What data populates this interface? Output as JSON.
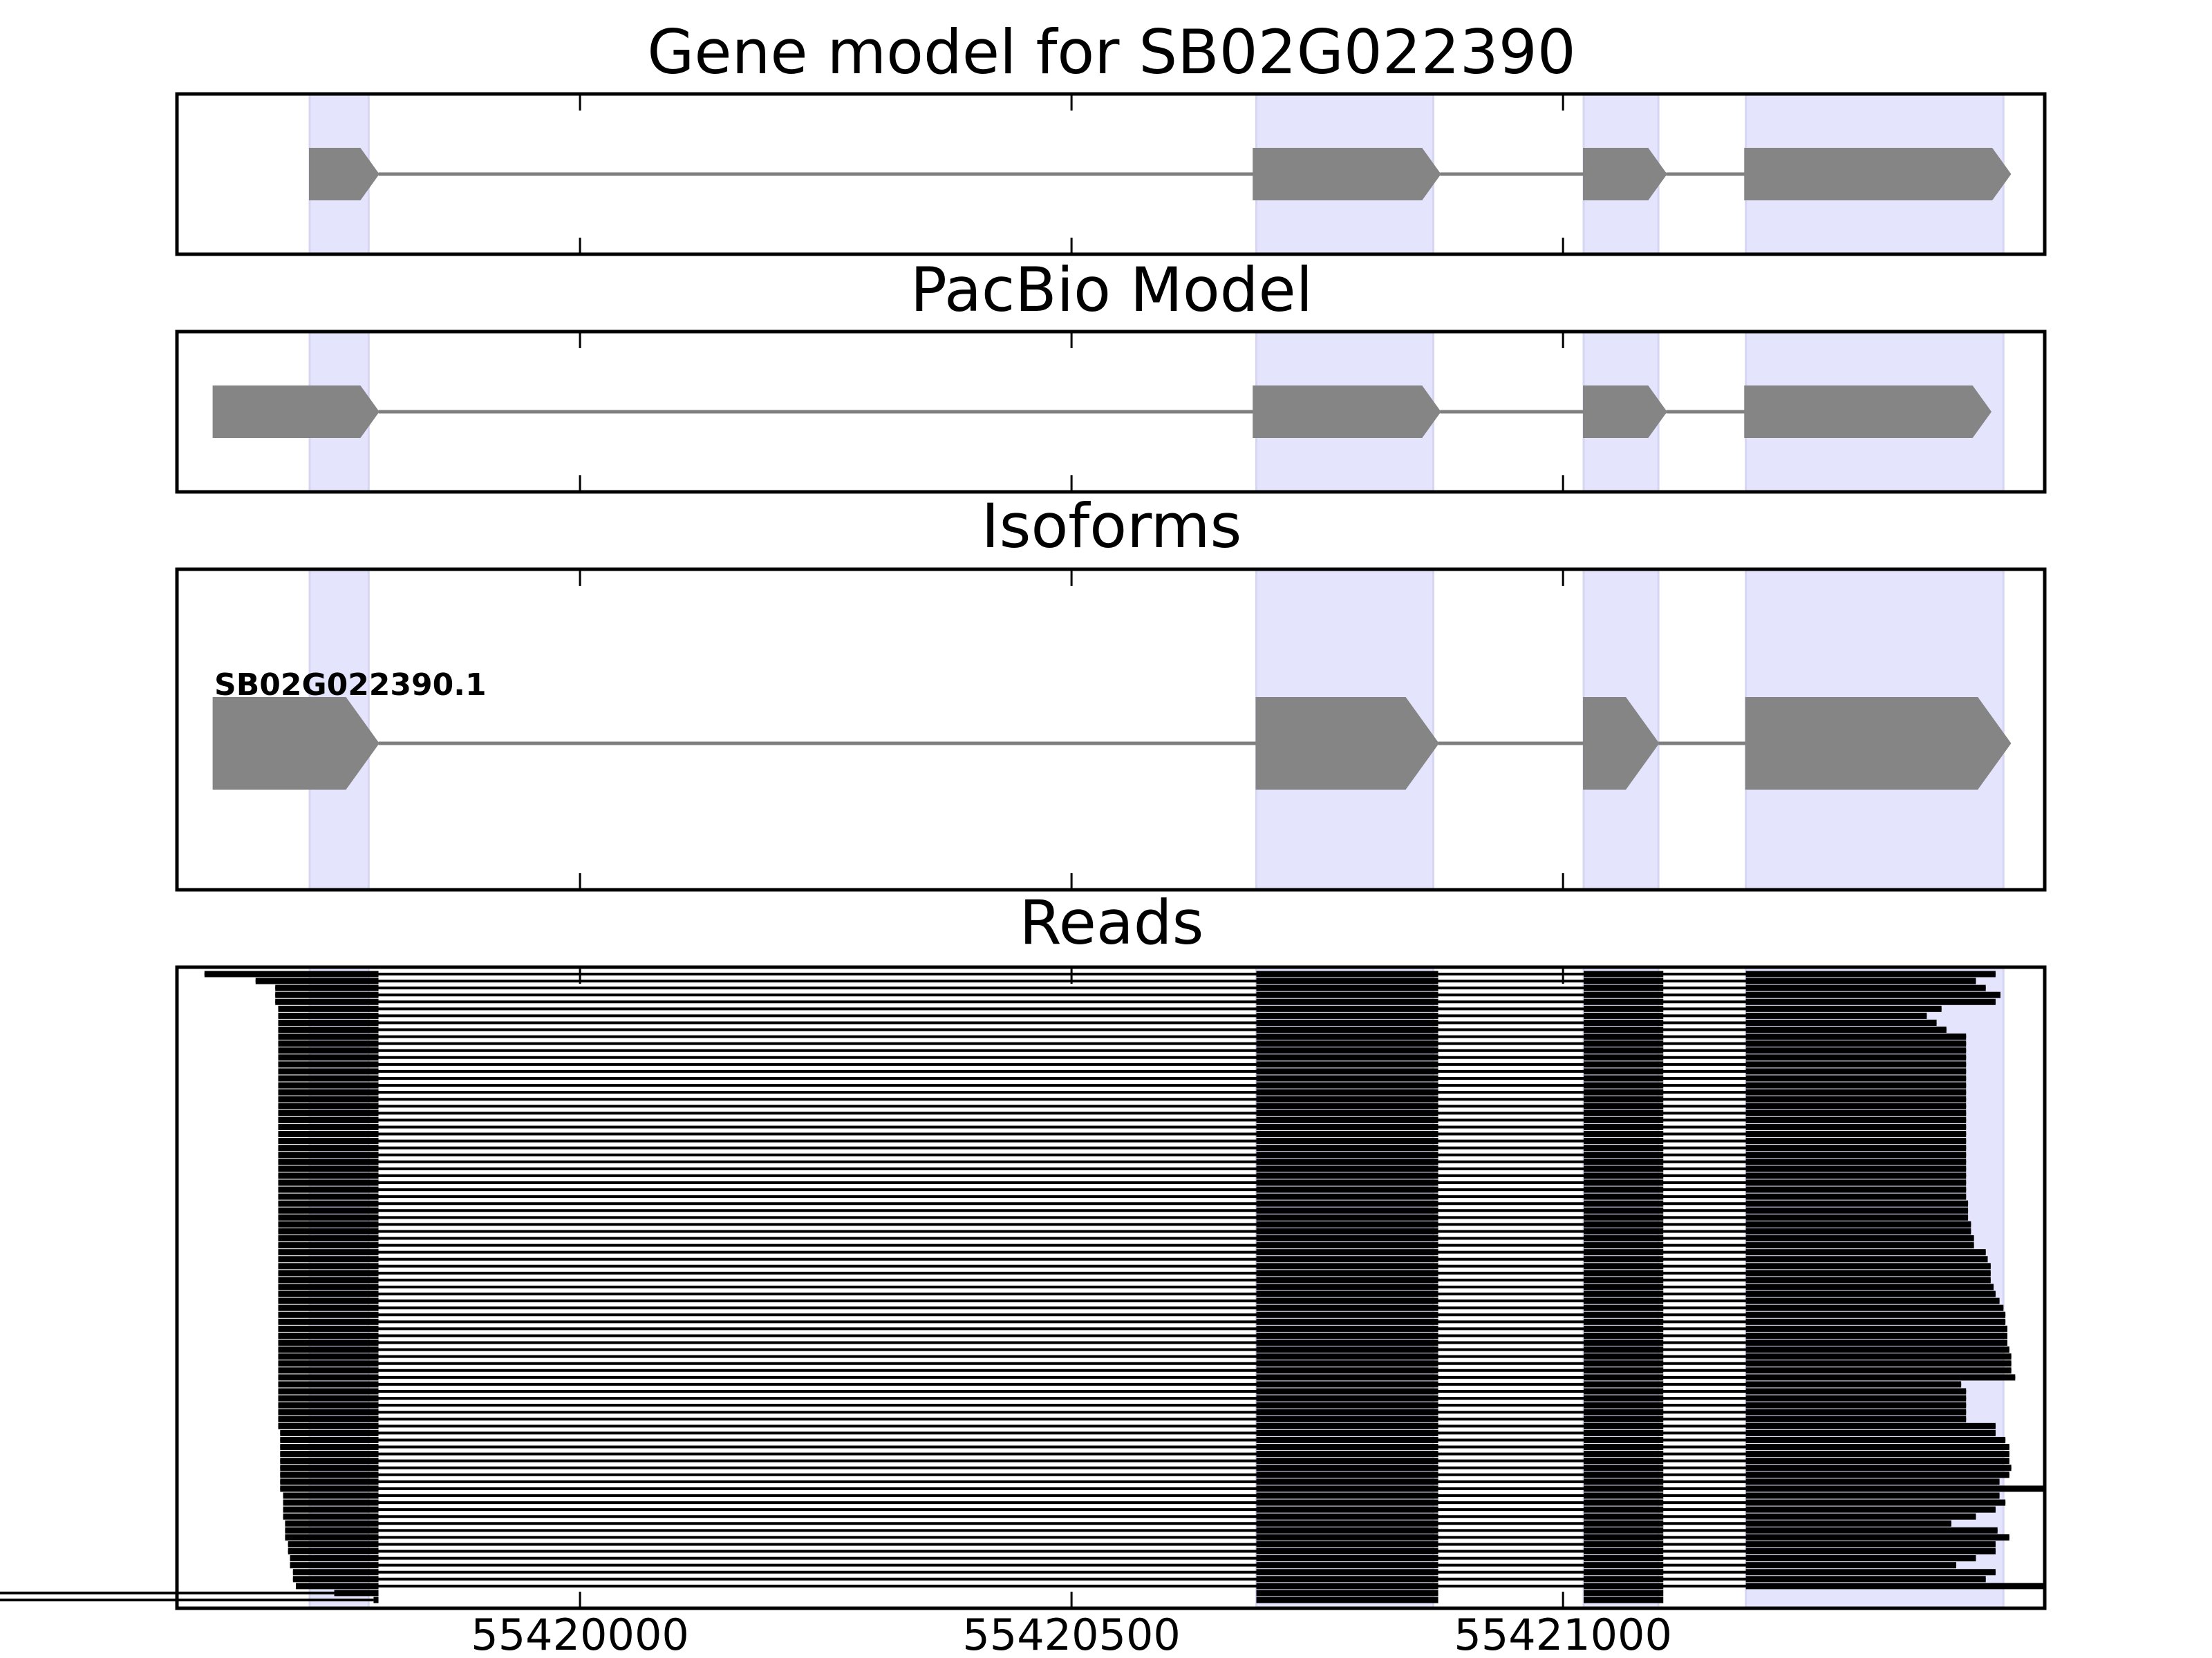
{
  "chart_data": {
    "type": "gene-model-tracks",
    "xlim": [
      55419590,
      55421490
    ],
    "x_ticks": [
      55420000,
      55420500,
      55421000
    ],
    "x_tick_labels": [
      "55420000",
      "55420500",
      "55421000"
    ],
    "exon_highlights": [
      [
        55419725,
        55419785
      ],
      [
        55420688,
        55420868
      ],
      [
        55421021,
        55421097
      ],
      [
        55421186,
        55421448
      ]
    ],
    "panels": [
      {
        "id": "gene-model",
        "title": "Gene model for SB02G022390",
        "blocks": [
          [
            55419725,
            55419795
          ],
          [
            55420685,
            55420875
          ],
          [
            55421021,
            55421105
          ],
          [
            55421185,
            55421455
          ]
        ],
        "introns": [
          [
            55419795,
            55420685
          ],
          [
            55420875,
            55421021
          ],
          [
            55421105,
            55421185
          ]
        ]
      },
      {
        "id": "pacbio-model",
        "title": "PacBio Model",
        "blocks": [
          [
            55419627,
            55419795
          ],
          [
            55420685,
            55420875
          ],
          [
            55421021,
            55421105
          ],
          [
            55421185,
            55421435
          ]
        ],
        "introns": [
          [
            55419795,
            55420685
          ],
          [
            55420875,
            55421021
          ],
          [
            55421105,
            55421185
          ]
        ]
      },
      {
        "id": "isoforms",
        "title": "Isoforms",
        "isoform_label": "SB02G022390.1",
        "blocks": [
          [
            55419627,
            55419795
          ],
          [
            55420688,
            55420873
          ],
          [
            55421021,
            55421097
          ],
          [
            55421186,
            55421455
          ]
        ],
        "introns": [
          [
            55419795,
            55420688
          ],
          [
            55420873,
            55421021
          ],
          [
            55421097,
            55421186
          ]
        ]
      },
      {
        "id": "reads",
        "title": "Reads",
        "read_exons": [
          [
            55420688,
            55420873
          ],
          [
            55421021,
            55421102
          ],
          [
            55421186,
            null
          ]
        ],
        "read_first_exon_end": 55419795,
        "read_starts": [
          55419618,
          55419670,
          55419690,
          55419690,
          55419690,
          55419693,
          55419693,
          55419693,
          55419693,
          55419693,
          55419693,
          55419693,
          55419693,
          55419693,
          55419693,
          55419693,
          55419693,
          55419693,
          55419693,
          55419693,
          55419693,
          55419693,
          55419693,
          55419693,
          55419693,
          55419693,
          55419693,
          55419693,
          55419693,
          55419693,
          55419693,
          55419693,
          55419693,
          55419693,
          55419693,
          55419693,
          55419693,
          55419693,
          55419693,
          55419693,
          55419693,
          55419693,
          55419693,
          55419693,
          55419693,
          55419693,
          55419693,
          55419693,
          55419693,
          55419693,
          55419693,
          55419693,
          55419693,
          55419693,
          55419693,
          55419693,
          55419693,
          55419693,
          55419693,
          55419693,
          55419693,
          55419693,
          55419693,
          55419693,
          55419693,
          55419693,
          55419695,
          55419695,
          55419695,
          55419695,
          55419695,
          55419695,
          55419695,
          55419695,
          55419695,
          55419698,
          55419698,
          55419698,
          55419698,
          55419700,
          55419700,
          55419700,
          55419703,
          55419703,
          55419705,
          55419705,
          55419708,
          55419708,
          55419711,
          55419750,
          55419790
        ],
        "read_ends": [
          55421440,
          55421420,
          55421430,
          55421445,
          55421440,
          55421385,
          55421370,
          55421380,
          55421390,
          55421410,
          55421410,
          55421410,
          55421410,
          55421410,
          55421410,
          55421410,
          55421410,
          55421410,
          55421410,
          55421410,
          55421410,
          55421410,
          55421410,
          55421410,
          55421410,
          55421410,
          55421410,
          55421410,
          55421410,
          55421410,
          55421410,
          55421410,
          55421410,
          55421412,
          55421412,
          55421412,
          55421415,
          55421415,
          55421418,
          55421418,
          55421430,
          55421432,
          55421435,
          55421435,
          55421435,
          55421438,
          55421440,
          55421444,
          55421448,
          55421450,
          55421450,
          55421452,
          55421452,
          55421452,
          55421454,
          55421456,
          55421456,
          55421456,
          55421460,
          55421405,
          55421410,
          55421410,
          55421410,
          55421410,
          55421410,
          55421440,
          55421440,
          55421450,
          55421454,
          55421454,
          55421454,
          55421456,
          55421454,
          55421444,
          55421490,
          55421444,
          55421450,
          55421440,
          55421420,
          55421395,
          55421442,
          55421454,
          55421440,
          55421440,
          55421420,
          55421400,
          55421440,
          55421430,
          55421490
        ]
      }
    ]
  }
}
